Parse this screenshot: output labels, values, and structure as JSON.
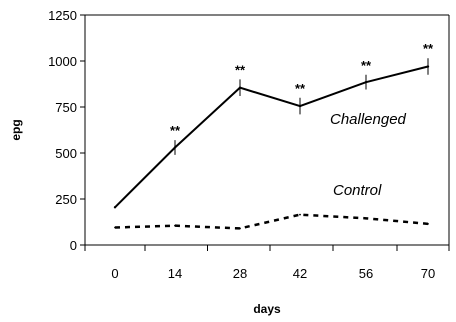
{
  "chart_data": {
    "type": "line",
    "title": "",
    "xlabel": "days",
    "ylabel": "epg",
    "x": [
      0,
      14,
      28,
      42,
      56,
      70
    ],
    "x_tick_labels": [
      "0",
      "14",
      "28",
      "42",
      "56",
      "70"
    ],
    "ylim": [
      0,
      1250
    ],
    "y_ticks": [
      0,
      250,
      500,
      750,
      1000,
      1250
    ],
    "y_tick_labels": [
      "0",
      "250",
      "500",
      "750",
      "1000",
      "1250"
    ],
    "grid": false,
    "series": [
      {
        "name": "Challenged",
        "style": "solid",
        "color": "#000000",
        "values": [
          205,
          530,
          855,
          755,
          885,
          970
        ],
        "errors": [
          0,
          40,
          45,
          45,
          40,
          45
        ],
        "significance": [
          "",
          "**",
          "**",
          "**",
          "**",
          "**"
        ]
      },
      {
        "name": "Control",
        "style": "dashed",
        "color": "#000000",
        "values": [
          95,
          105,
          90,
          165,
          145,
          115
        ]
      }
    ]
  }
}
